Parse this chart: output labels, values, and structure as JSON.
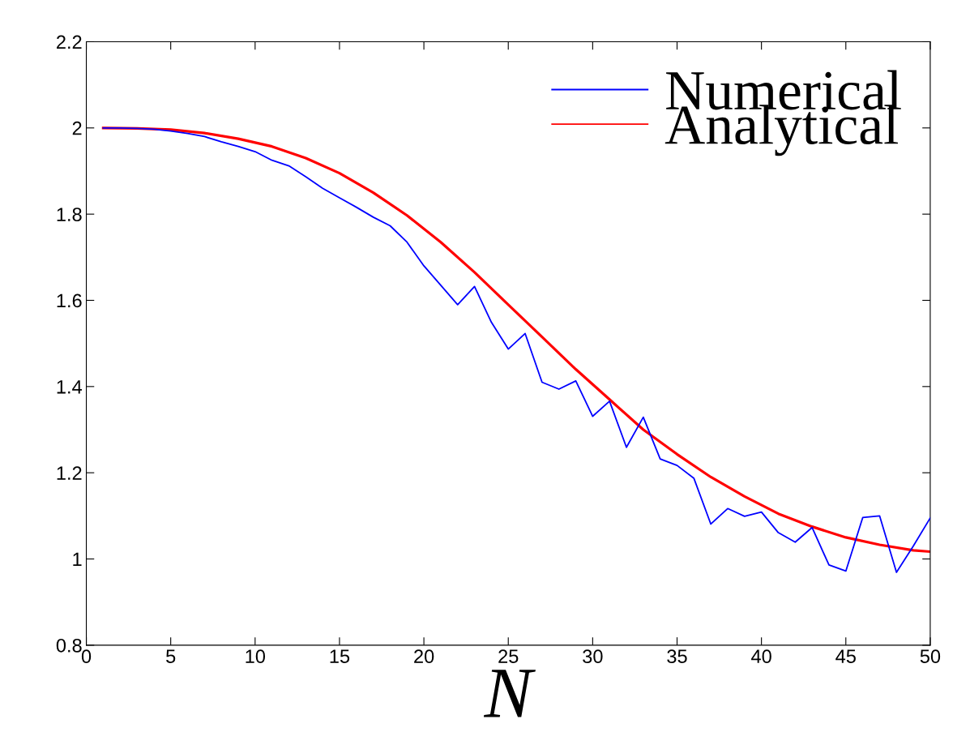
{
  "chart_data": {
    "type": "line",
    "xlabel": "N",
    "xlim": [
      0,
      50
    ],
    "ylim": [
      0.8,
      2.2
    ],
    "xticks": [
      0,
      5,
      10,
      15,
      20,
      25,
      30,
      35,
      40,
      45,
      50
    ],
    "yticks": [
      0.8,
      1,
      1.2,
      1.4,
      1.6,
      1.8,
      2,
      2.2
    ],
    "grid": false,
    "legend": "top right",
    "marker": "none",
    "line_style": "solid",
    "series": [
      {
        "name": "Numerical",
        "color": "#0000ff",
        "x": [
          1,
          2,
          3,
          4,
          5,
          6,
          7,
          8,
          9,
          10,
          11,
          12,
          13,
          14,
          15,
          16,
          17,
          18,
          19,
          20,
          21,
          22,
          23,
          24,
          25,
          26,
          27,
          28,
          29,
          30,
          31,
          32,
          33,
          34,
          35,
          36,
          37,
          38,
          39,
          40,
          41,
          42,
          43,
          44,
          45,
          46,
          47,
          48,
          49,
          50
        ],
        "values": [
          2.0,
          2.0,
          1.999,
          1.997,
          1.993,
          1.987,
          1.98,
          1.968,
          1.957,
          1.945,
          1.925,
          1.912,
          1.887,
          1.86,
          1.838,
          1.816,
          1.793,
          1.773,
          1.735,
          1.68,
          1.635,
          1.59,
          1.632,
          1.549,
          1.487,
          1.523,
          1.41,
          1.394,
          1.413,
          1.331,
          1.366,
          1.259,
          1.329,
          1.232,
          1.217,
          1.187,
          1.081,
          1.117,
          1.099,
          1.109,
          1.061,
          1.039,
          1.073,
          0.986,
          0.972,
          1.096,
          1.1,
          0.969,
          1.03,
          1.095
        ]
      },
      {
        "name": "Analytical",
        "color": "#ff0000",
        "x": [
          1,
          3,
          5,
          7,
          9,
          11,
          13,
          15,
          17,
          19,
          21,
          23,
          25,
          27,
          29,
          31,
          33,
          35,
          37,
          39,
          41,
          43,
          45,
          47,
          49,
          50
        ],
        "values": [
          2.0,
          1.999,
          1.996,
          1.988,
          1.975,
          1.957,
          1.93,
          1.895,
          1.85,
          1.797,
          1.735,
          1.665,
          1.59,
          1.515,
          1.44,
          1.37,
          1.3,
          1.243,
          1.19,
          1.145,
          1.105,
          1.075,
          1.05,
          1.033,
          1.02,
          1.017
        ]
      }
    ]
  }
}
